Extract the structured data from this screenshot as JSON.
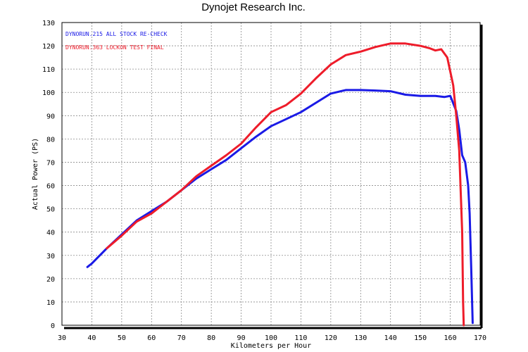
{
  "chart_data": {
    "type": "line",
    "title": "Dynojet  Research  Inc.",
    "xlabel": "Kilometers per Hour",
    "ylabel": "Actual Power (PS)",
    "xlim": [
      30,
      170
    ],
    "ylim": [
      0,
      130
    ],
    "xticks": [
      30,
      40,
      50,
      60,
      70,
      80,
      90,
      100,
      110,
      120,
      130,
      140,
      150,
      160,
      170
    ],
    "yticks": [
      0,
      10,
      20,
      30,
      40,
      50,
      60,
      70,
      80,
      90,
      100,
      110,
      120,
      130
    ],
    "grid": true,
    "legend_position": "top-left",
    "series": [
      {
        "name": "DYNORUN.215   ALL STOCK RE-CHECK",
        "color": "#1a1ae6",
        "x": [
          38.5,
          40,
          45,
          50,
          55,
          60,
          65,
          70,
          75,
          80,
          85,
          90,
          95,
          100,
          105,
          110,
          115,
          120,
          125,
          130,
          135,
          140,
          145,
          150,
          155,
          158,
          160,
          162,
          163,
          164,
          165,
          166,
          166.5,
          167,
          167.5
        ],
        "y": [
          25,
          26.5,
          33,
          39,
          45,
          49,
          53,
          58,
          63,
          67,
          71,
          76,
          81,
          85.5,
          88.5,
          91.5,
          95.5,
          99.5,
          101,
          101,
          100.8,
          100.5,
          99,
          98.5,
          98.5,
          98,
          98.5,
          92,
          84,
          73,
          70,
          60,
          48,
          25,
          1
        ]
      },
      {
        "name": "DYNORUN.363   LOCKON TEST FINAL",
        "color": "#ee1c2a",
        "x": [
          45,
          50,
          55,
          60,
          65,
          70,
          75,
          80,
          85,
          90,
          95,
          100,
          105,
          110,
          115,
          120,
          125,
          130,
          135,
          140,
          145,
          150,
          153,
          155,
          157,
          159,
          161,
          162,
          163,
          164,
          164.3,
          164.5
        ],
        "y": [
          33,
          38.5,
          44.5,
          48,
          53,
          58,
          64,
          68.5,
          73,
          78,
          85,
          91.5,
          94.5,
          99.5,
          106,
          112,
          116,
          117.5,
          119.5,
          121,
          121,
          120,
          119,
          118,
          118.5,
          115,
          103,
          90,
          75,
          40,
          10,
          0
        ]
      }
    ]
  }
}
